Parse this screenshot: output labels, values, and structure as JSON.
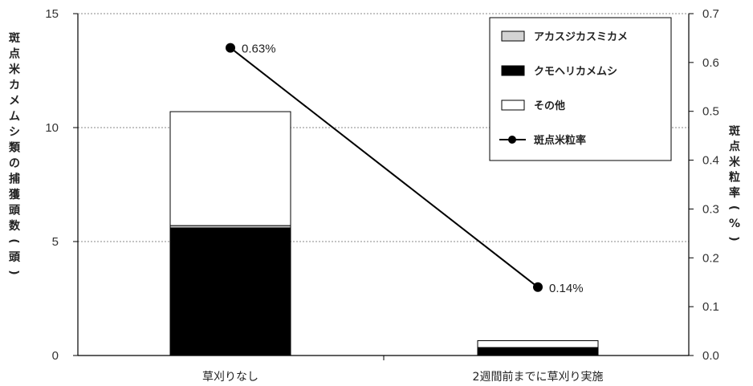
{
  "chart_data": {
    "type": "bar",
    "categories": [
      "草刈りなし",
      "2週間前までに草刈り実施"
    ],
    "series": [
      {
        "name": "クモヘリカメムシ",
        "values": [
          5.6,
          0.35
        ],
        "color": "#000000"
      },
      {
        "name": "アカスジカスミカメ",
        "values": [
          0.1,
          0.0
        ],
        "color": "#d3d3d3"
      },
      {
        "name": "その他",
        "values": [
          5.0,
          0.3
        ],
        "color": "#ffffff"
      }
    ],
    "line_series": {
      "name": "斑点米粒率",
      "values": [
        0.63,
        0.14
      ],
      "labels": [
        "0.63%",
        "0.14%"
      ],
      "color": "#000000"
    },
    "ylabel": "斑点米カメムシ類の捕獲頭数（頭）",
    "y2label": "斑点米粒率（%）",
    "ylim": [
      0,
      15
    ],
    "y2lim": [
      0,
      0.7
    ],
    "yticks": [
      "0",
      "5",
      "10",
      "15"
    ],
    "y2ticks": [
      "0.0",
      "0.1",
      "0.2",
      "0.3",
      "0.4",
      "0.5",
      "0.6",
      "0.7"
    ],
    "legend_order": [
      "アカスジカスミカメ",
      "クモヘリカメムシ",
      "その他",
      "斑点米粒率"
    ],
    "legend_position": "top-right",
    "grid": "horizontal dotted"
  }
}
